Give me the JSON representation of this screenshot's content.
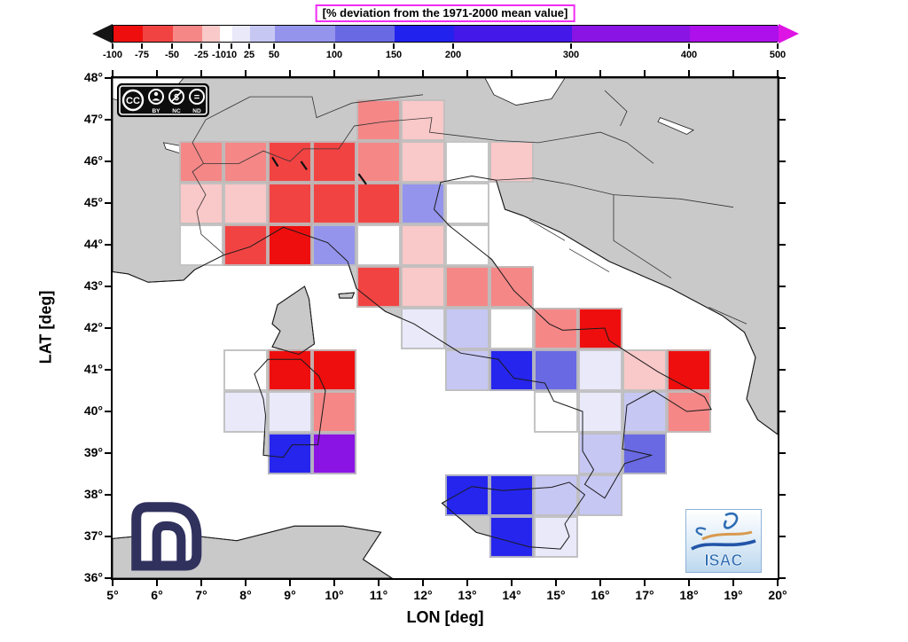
{
  "colorbar": {
    "title": "[% deviation from the 1971-2000 mean value]",
    "ticks": [
      "-100",
      "-75",
      "-50",
      "-25",
      "-10",
      "10",
      "25",
      "50",
      "100",
      "150",
      "200",
      "300",
      "400",
      "500"
    ],
    "tick_pos": [
      0,
      33,
      67,
      100,
      120,
      134,
      154,
      182,
      250,
      317,
      384,
      517,
      650,
      750
    ],
    "segment_colors": [
      "#ee0e0e",
      "#f24343",
      "#f58787",
      "#f9c8c8",
      "#ffffff",
      "#e9e9fa",
      "#c7c7f4",
      "#9494ec",
      "#6969e3",
      "#2222ee",
      "#4318e8",
      "#8a14e4",
      "#ad10ea"
    ],
    "left_arrow_color": "#151515",
    "right_arrow_color": "#dd14e4",
    "title_border_color": "#f02cf2"
  },
  "axes": {
    "xlabel": "LON [deg]",
    "ylabel": "LAT [deg]",
    "x_ticks": [
      "5°",
      "6°",
      "7°",
      "8°",
      "9°",
      "10°",
      "11°",
      "12°",
      "13°",
      "14°",
      "15°",
      "16°",
      "17°",
      "18°",
      "19°",
      "20°"
    ],
    "y_ticks": [
      "48°",
      "47°",
      "46°",
      "45°",
      "44°",
      "43°",
      "42°",
      "41°",
      "40°",
      "39°",
      "38°",
      "37°",
      "36°"
    ],
    "x_range": [
      5,
      20
    ],
    "y_range": [
      36,
      48
    ]
  },
  "map": {
    "land_color": "#c9c9c9",
    "sea_color": "#ffffff",
    "coast_color": "#1a1a1a"
  },
  "palette": {
    "-100..-75": "#ee0e0e",
    "-75..-50": "#f24343",
    "-50..-25": "#f58787",
    "-25..-10": "#f9c8c8",
    "-10..10": "#ffffff",
    "10..25": "#e9e9fa",
    "25..50": "#c7c7f4",
    "50..100": "#9494ec",
    "100..150": "#6969e3",
    "150..200": "#2525ee",
    "200..300": "#4318e8",
    "300..400": "#8a14e4",
    "400..500": "#ad10ea"
  },
  "chart_data": {
    "type": "heatmap",
    "title": "% deviation from the 1971-2000 mean value",
    "xlabel": "LON [deg]",
    "ylabel": "LAT [deg]",
    "x_range": [
      5,
      20
    ],
    "y_range": [
      36,
      48
    ],
    "cell_size_deg": 1,
    "legend_bins": [
      "-100..-75",
      "-75..-50",
      "-50..-25",
      "-25..-10",
      "-10..10",
      "10..25",
      "25..50",
      "50..100",
      "100..150",
      "150..200",
      "200..300",
      "300..400",
      "400..500"
    ],
    "cells": [
      {
        "lon": 11,
        "lat": 47,
        "bin": "-50..-25"
      },
      {
        "lon": 12,
        "lat": 47,
        "bin": "-25..-10"
      },
      {
        "lon": 7,
        "lat": 46,
        "bin": "-50..-25"
      },
      {
        "lon": 8,
        "lat": 46,
        "bin": "-50..-25"
      },
      {
        "lon": 9,
        "lat": 46,
        "bin": "-75..-50"
      },
      {
        "lon": 10,
        "lat": 46,
        "bin": "-75..-50"
      },
      {
        "lon": 11,
        "lat": 46,
        "bin": "-50..-25"
      },
      {
        "lon": 12,
        "lat": 46,
        "bin": "-25..-10"
      },
      {
        "lon": 13,
        "lat": 46,
        "bin": "-10..10"
      },
      {
        "lon": 14,
        "lat": 46,
        "bin": "-25..-10"
      },
      {
        "lon": 7,
        "lat": 45,
        "bin": "-25..-10"
      },
      {
        "lon": 8,
        "lat": 45,
        "bin": "-25..-10"
      },
      {
        "lon": 9,
        "lat": 45,
        "bin": "-75..-50"
      },
      {
        "lon": 10,
        "lat": 45,
        "bin": "-75..-50"
      },
      {
        "lon": 11,
        "lat": 45,
        "bin": "-75..-50"
      },
      {
        "lon": 12,
        "lat": 45,
        "bin": "50..100"
      },
      {
        "lon": 13,
        "lat": 45,
        "bin": "-10..10"
      },
      {
        "lon": 7,
        "lat": 44,
        "bin": "-10..10"
      },
      {
        "lon": 8,
        "lat": 44,
        "bin": "-75..-50"
      },
      {
        "lon": 9,
        "lat": 44,
        "bin": "-100..-75"
      },
      {
        "lon": 10,
        "lat": 44,
        "bin": "50..100"
      },
      {
        "lon": 11,
        "lat": 44,
        "bin": "-10..10"
      },
      {
        "lon": 12,
        "lat": 44,
        "bin": "-25..-10"
      },
      {
        "lon": 13,
        "lat": 44,
        "bin": "-10..10"
      },
      {
        "lon": 11,
        "lat": 43,
        "bin": "-75..-50"
      },
      {
        "lon": 12,
        "lat": 43,
        "bin": "-25..-10"
      },
      {
        "lon": 13,
        "lat": 43,
        "bin": "-50..-25"
      },
      {
        "lon": 14,
        "lat": 43,
        "bin": "-50..-25"
      },
      {
        "lon": 12,
        "lat": 42,
        "bin": "10..25"
      },
      {
        "lon": 13,
        "lat": 42,
        "bin": "25..50"
      },
      {
        "lon": 14,
        "lat": 42,
        "bin": "-10..10"
      },
      {
        "lon": 15,
        "lat": 42,
        "bin": "-50..-25"
      },
      {
        "lon": 16,
        "lat": 42,
        "bin": "-100..-75"
      },
      {
        "lon": 8,
        "lat": 41,
        "bin": "-10..10"
      },
      {
        "lon": 9,
        "lat": 41,
        "bin": "-100..-75"
      },
      {
        "lon": 10,
        "lat": 41,
        "bin": "-100..-75"
      },
      {
        "lon": 13,
        "lat": 41,
        "bin": "25..50"
      },
      {
        "lon": 14,
        "lat": 41,
        "bin": "150..200"
      },
      {
        "lon": 15,
        "lat": 41,
        "bin": "100..150"
      },
      {
        "lon": 16,
        "lat": 41,
        "bin": "10..25"
      },
      {
        "lon": 17,
        "lat": 41,
        "bin": "-25..-10"
      },
      {
        "lon": 18,
        "lat": 41,
        "bin": "-100..-75"
      },
      {
        "lon": 8,
        "lat": 40,
        "bin": "10..25"
      },
      {
        "lon": 9,
        "lat": 40,
        "bin": "10..25"
      },
      {
        "lon": 10,
        "lat": 40,
        "bin": "-50..-25"
      },
      {
        "lon": 15,
        "lat": 40,
        "bin": "-10..10"
      },
      {
        "lon": 16,
        "lat": 40,
        "bin": "10..25"
      },
      {
        "lon": 17,
        "lat": 40,
        "bin": "25..50"
      },
      {
        "lon": 18,
        "lat": 40,
        "bin": "-50..-25"
      },
      {
        "lon": 9,
        "lat": 39,
        "bin": "150..200"
      },
      {
        "lon": 10,
        "lat": 39,
        "bin": "300..400"
      },
      {
        "lon": 16,
        "lat": 39,
        "bin": "25..50"
      },
      {
        "lon": 17,
        "lat": 39,
        "bin": "100..150"
      },
      {
        "lon": 13,
        "lat": 38,
        "bin": "150..200"
      },
      {
        "lon": 14,
        "lat": 38,
        "bin": "150..200"
      },
      {
        "lon": 15,
        "lat": 38,
        "bin": "25..50"
      },
      {
        "lon": 16,
        "lat": 38,
        "bin": "25..50"
      },
      {
        "lon": 14,
        "lat": 37,
        "bin": "150..200"
      },
      {
        "lon": 15,
        "lat": 37,
        "bin": "10..25"
      }
    ]
  },
  "badges": {
    "cc": {
      "main": "CC",
      "labels": [
        "BY",
        "NC",
        "ND"
      ],
      "nc_glyph": "$",
      "nd_glyph": "="
    },
    "isac": {
      "text": "ISAC"
    }
  }
}
